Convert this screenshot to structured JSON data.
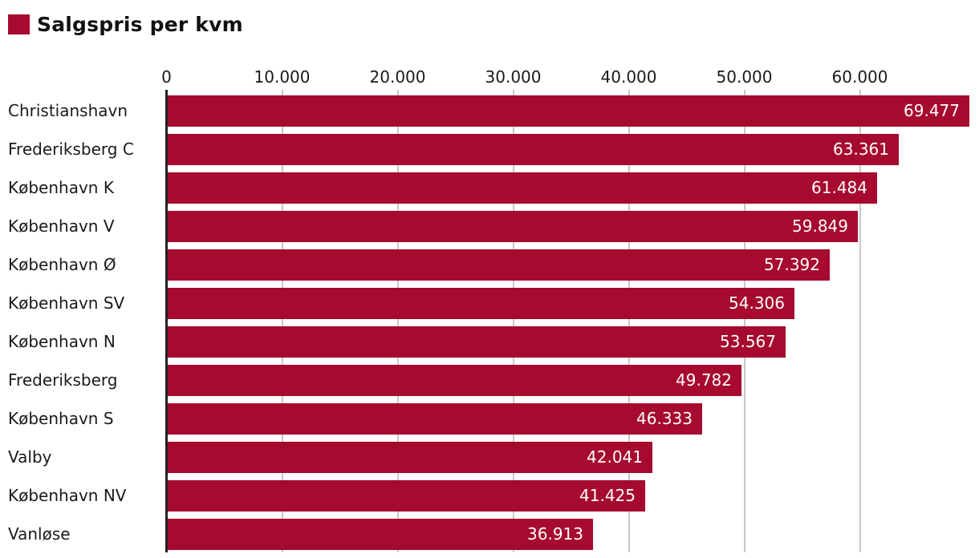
{
  "chart_data": {
    "type": "bar",
    "orientation": "horizontal",
    "title": "Salgspris per kvm",
    "categories": [
      "Christianshavn",
      "Frederiksberg C",
      "København K",
      "København V",
      "København Ø",
      "København SV",
      "København N",
      "Frederiksberg",
      "København S",
      "Valby",
      "København NV",
      "Vanløse"
    ],
    "values": [
      69477,
      63361,
      61484,
      59849,
      57392,
      54306,
      53567,
      49782,
      46333,
      42041,
      41425,
      36913
    ],
    "value_labels": [
      "69.477",
      "63.361",
      "61.484",
      "59.849",
      "57.392",
      "54.306",
      "53.567",
      "49.782",
      "46.333",
      "42.041",
      "41.425",
      "36.913"
    ],
    "x_ticks": [
      0,
      10000,
      20000,
      30000,
      40000,
      50000,
      60000
    ],
    "x_tick_labels": [
      "0",
      "10.000",
      "20.000",
      "30.000",
      "40.000",
      "50.000",
      "60.000"
    ],
    "xlim": [
      0,
      70300
    ],
    "grid": true,
    "legend_position": "top-left",
    "bar_color": "#A60A2E",
    "gridline_color": "#C7C7C7",
    "axis_line_color": "#222222",
    "value_label_color": "#ffffff",
    "category_label_color": "#1a1a1a",
    "tick_label_color": "#1a1a1a",
    "title_color": "#111111"
  }
}
